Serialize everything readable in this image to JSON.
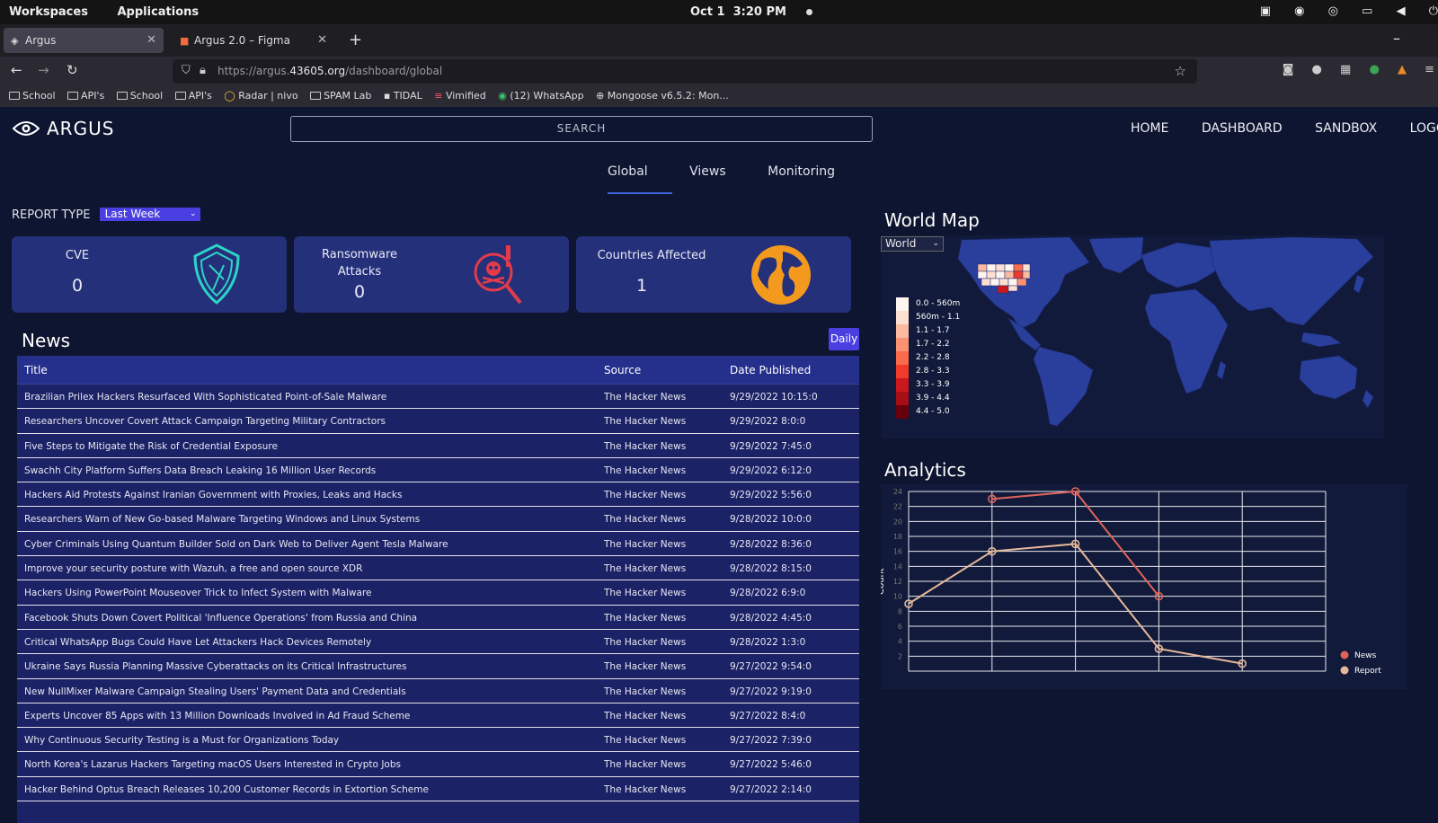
{
  "os": {
    "workspaces": "Workspaces",
    "applications": "Applications",
    "date": "Oct 1",
    "time": "3:20 PM"
  },
  "tabs": [
    {
      "title": "Argus",
      "icon": "argus-favicon"
    },
    {
      "title": "Argus 2.0 – Figma",
      "icon": "figma-favicon"
    }
  ],
  "url": {
    "prefix": "https://argus.",
    "domain": "43605.org",
    "path": "/dashboard/global"
  },
  "bookmarks": [
    "School",
    "API's",
    "School",
    "API's",
    "Radar | nivo",
    "SPAM Lab",
    "TIDAL",
    "Vimified",
    "(12) WhatsApp",
    "Mongoose v6.5.2: Mon..."
  ],
  "header": {
    "logo": "ARGUS",
    "search_placeholder": "SEARCH",
    "nav": [
      "HOME",
      "DASHBOARD",
      "SANDBOX",
      "LOGOUT"
    ]
  },
  "subtabs": [
    "Global",
    "Views",
    "Monitoring"
  ],
  "report": {
    "label": "REPORT TYPE",
    "selected": "Last Week"
  },
  "cards": [
    {
      "label": "CVE",
      "value": "0",
      "icon": "shield-icon"
    },
    {
      "label": "Ransomware\nAttacks",
      "value": "0",
      "icon": "skull-crossbones-icon"
    },
    {
      "label": "Countries Affected",
      "value": "1",
      "icon": "globe-icon"
    }
  ],
  "news": {
    "title": "News",
    "filter": "Daily",
    "columns": [
      "Title",
      "Source",
      "Date Published"
    ],
    "rows": [
      [
        "Brazilian Prilex Hackers Resurfaced With Sophisticated Point-of-Sale Malware",
        "The Hacker News",
        "9/29/2022 10:15:0"
      ],
      [
        "Researchers Uncover Covert Attack Campaign Targeting Military Contractors",
        "The Hacker News",
        "9/29/2022 8:0:0"
      ],
      [
        "Five Steps to Mitigate the Risk of Credential Exposure",
        "The Hacker News",
        "9/29/2022 7:45:0"
      ],
      [
        "Swachh City Platform Suffers Data Breach Leaking 16 Million User Records",
        "The Hacker News",
        "9/29/2022 6:12:0"
      ],
      [
        "Hackers Aid Protests Against Iranian Government with Proxies, Leaks and Hacks",
        "The Hacker News",
        "9/29/2022 5:56:0"
      ],
      [
        "Researchers Warn of New Go-based Malware Targeting Windows and Linux Systems",
        "The Hacker News",
        "9/28/2022 10:0:0"
      ],
      [
        "Cyber Criminals Using Quantum Builder Sold on Dark Web to Deliver Agent Tesla Malware",
        "The Hacker News",
        "9/28/2022 8:36:0"
      ],
      [
        "Improve your security posture with Wazuh, a free and open source XDR",
        "The Hacker News",
        "9/28/2022 8:15:0"
      ],
      [
        "Hackers Using PowerPoint Mouseover Trick to Infect System with Malware",
        "The Hacker News",
        "9/28/2022 6:9:0"
      ],
      [
        "Facebook Shuts Down Covert Political 'Influence Operations' from Russia and China",
        "The Hacker News",
        "9/28/2022 4:45:0"
      ],
      [
        "Critical WhatsApp Bugs Could Have Let Attackers Hack Devices Remotely",
        "The Hacker News",
        "9/28/2022 1:3:0"
      ],
      [
        "Ukraine Says Russia Planning Massive Cyberattacks on its Critical Infrastructures",
        "The Hacker News",
        "9/27/2022 9:54:0"
      ],
      [
        "New NullMixer Malware Campaign Stealing Users' Payment Data and Credentials",
        "The Hacker News",
        "9/27/2022 9:19:0"
      ],
      [
        "Experts Uncover 85 Apps with 13 Million Downloads Involved in Ad Fraud Scheme",
        "The Hacker News",
        "9/27/2022 8:4:0"
      ],
      [
        "Why Continuous Security Testing is a Must for Organizations Today",
        "The Hacker News",
        "9/27/2022 7:39:0"
      ],
      [
        "North Korea's Lazarus Hackers Targeting macOS Users Interested in Crypto Jobs",
        "The Hacker News",
        "9/27/2022 5:46:0"
      ],
      [
        "Hacker Behind Optus Breach Releases 10,200 Customer Records in Extortion Scheme",
        "The Hacker News",
        "9/27/2022 2:14:0"
      ]
    ]
  },
  "map": {
    "title": "World Map",
    "selected": "World",
    "legend": [
      "0.0 - 560m",
      "560m - 1.1",
      "1.1 - 1.7",
      "1.7 - 2.2",
      "2.2 - 2.8",
      "2.8 - 3.3",
      "3.3 - 3.9",
      "3.9 - 4.4",
      "4.4 - 5.0"
    ],
    "legend_colors": [
      "#fff5f0",
      "#fee0d2",
      "#fcbba1",
      "#fc9272",
      "#fb6a4a",
      "#ef3b2c",
      "#cb181d",
      "#a50f15",
      "#67000d"
    ]
  },
  "analytics": {
    "title": "Analytics",
    "chart_data": {
      "type": "line",
      "ylabel": "Count",
      "ylim": [
        0,
        24
      ],
      "yticks": [
        2,
        4,
        6,
        8,
        10,
        12,
        14,
        16,
        18,
        20,
        22,
        24
      ],
      "x": [
        0,
        1,
        2,
        3,
        4
      ],
      "series": [
        {
          "name": "News",
          "color": "#e0645a",
          "values": [
            null,
            23,
            24,
            10,
            null
          ]
        },
        {
          "name": "Report",
          "color": "#e6b89a",
          "values": [
            9,
            16,
            17,
            3,
            1
          ]
        }
      ],
      "legend": "bottom-right"
    }
  }
}
